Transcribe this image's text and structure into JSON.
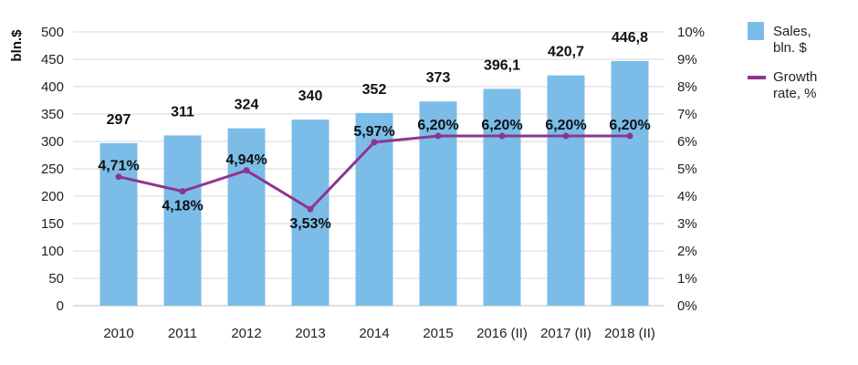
{
  "chart_data": {
    "type": "bar",
    "title": "",
    "xlabel": "",
    "ylabel": "bln.$",
    "ylim": [
      0,
      500
    ],
    "y_ticks": [
      "0",
      "50",
      "100",
      "150",
      "200",
      "250",
      "300",
      "350",
      "400",
      "450",
      "500"
    ],
    "y2lim": [
      0,
      10
    ],
    "y2_ticks": [
      "0%",
      "1%",
      "2%",
      "3%",
      "4%",
      "5%",
      "6%",
      "7%",
      "8%",
      "9%",
      "10%"
    ],
    "categories": [
      "2010",
      "2011",
      "2012",
      "2013",
      "2014",
      "2015",
      "2016 (II)",
      "2017 (II)",
      "2018 (II)"
    ],
    "grid": true,
    "legend_position": "right",
    "series": [
      {
        "name": "Sales, bln. $",
        "name_lines": [
          "Sales,",
          "bln. $"
        ],
        "type": "bar",
        "axis": "left",
        "color": "#7bbde8",
        "values": [
          297,
          311,
          324,
          340,
          352,
          373,
          396.1,
          420.7,
          446.8
        ],
        "labels": [
          "297",
          "311",
          "324",
          "340",
          "352",
          "373",
          "396,1",
          "420,7",
          "446,8"
        ]
      },
      {
        "name": "Growth rate, %",
        "name_lines": [
          "Growth",
          "rate, %"
        ],
        "type": "line",
        "axis": "right",
        "color": "#8e3590",
        "values": [
          4.71,
          4.18,
          4.94,
          3.53,
          5.97,
          6.2,
          6.2,
          6.2,
          6.2
        ],
        "labels": [
          "4,71%",
          "4,18%",
          "4,94%",
          "3,53%",
          "5,97%",
          "6,20%",
          "6,20%",
          "6,20%",
          "6,20%"
        ]
      }
    ]
  }
}
